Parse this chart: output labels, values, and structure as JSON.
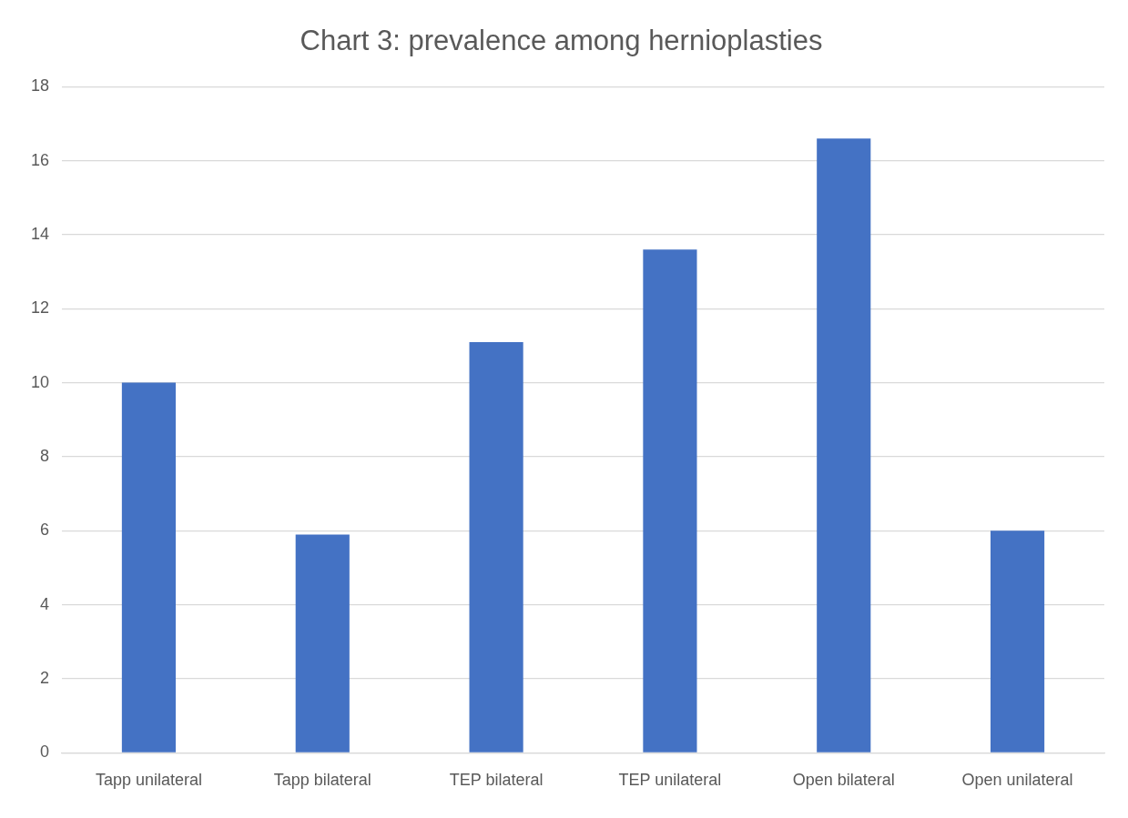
{
  "chart_data": {
    "type": "bar",
    "title": "Chart 3: prevalence among hernioplasties",
    "categories": [
      "Tapp unilateral",
      "Tapp bilateral",
      "TEP bilateral",
      "TEP unilateral",
      "Open bilateral",
      "Open unilateral"
    ],
    "values": [
      10,
      5.9,
      11.1,
      13.6,
      16.6,
      6
    ],
    "color": "#4472c4",
    "ylim": [
      0,
      18
    ],
    "yticks": [
      0,
      2,
      4,
      6,
      8,
      10,
      12,
      14,
      16,
      18
    ],
    "grid": "y",
    "legend": false
  }
}
